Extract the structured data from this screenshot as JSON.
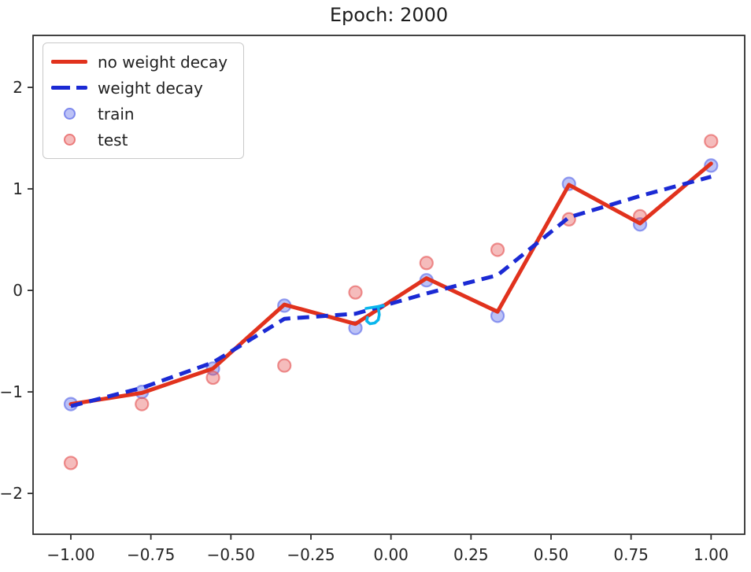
{
  "page": {
    "background": "#ffffff",
    "text_color": "#262626",
    "spine_color": "#2e2e2e"
  },
  "chart_data": {
    "type": "line+scatter",
    "title": "Epoch: 2000",
    "xlabel": "",
    "ylabel": "",
    "grid": false,
    "legend_position": "upper-left",
    "x": [
      -1.0,
      -0.778,
      -0.556,
      -0.333,
      -0.111,
      0.111,
      0.333,
      0.556,
      0.778,
      1.0
    ],
    "series": [
      {
        "name": "no weight decay",
        "kind": "line",
        "dash": "solid",
        "color": "#e1321d",
        "width": 5,
        "values": [
          -1.12,
          -1.01,
          -0.77,
          -0.14,
          -0.33,
          0.12,
          -0.21,
          1.04,
          0.66,
          1.25
        ]
      },
      {
        "name": "weight decay",
        "kind": "line",
        "dash": "dashed",
        "color": "#1b2ad4",
        "width": 5,
        "values": [
          -1.14,
          -0.96,
          -0.71,
          -0.28,
          -0.23,
          -0.03,
          0.15,
          0.72,
          0.93,
          1.12
        ]
      },
      {
        "name": "train",
        "kind": "scatter",
        "color": "rgba(88,103,232,0.40)",
        "edge": "rgba(88,103,232,0.62)",
        "radius": 8,
        "values": [
          -1.12,
          -1.0,
          -0.77,
          -0.15,
          -0.37,
          0.1,
          -0.25,
          1.05,
          0.65,
          1.23
        ]
      },
      {
        "name": "test",
        "kind": "scatter",
        "color": "rgba(229,80,80,0.38)",
        "edge": "rgba(229,80,80,0.60)",
        "radius": 8,
        "values": [
          -1.7,
          -1.12,
          -0.86,
          -0.74,
          -0.02,
          0.27,
          0.4,
          0.7,
          0.73,
          1.47
        ]
      }
    ],
    "xticks": {
      "values": [
        -1.0,
        -0.75,
        -0.5,
        -0.25,
        0.0,
        0.25,
        0.5,
        0.75,
        1.0
      ],
      "labels": [
        "−1.00",
        "−0.75",
        "−0.50",
        "−0.25",
        "0.00",
        "0.25",
        "0.50",
        "0.75",
        "1.00"
      ]
    },
    "yticks": {
      "values": [
        -2,
        -1,
        0,
        1,
        2
      ],
      "labels": [
        "−2",
        "−1",
        "0",
        "1",
        "2"
      ]
    },
    "xlim": [
      -1.118,
      1.105
    ],
    "ylim": [
      -2.402,
      2.512
    ],
    "annotation": {
      "label": "cyan-scribble",
      "color": "#0ab6ec",
      "stroke_width": 3.6,
      "strokes_px": [
        [
          [
            465,
            392
          ],
          [
            487,
            388.5
          ]
        ],
        [
          [
            480.5,
            390
          ],
          [
            481.8,
            400
          ],
          [
            480.5,
            406.5
          ],
          [
            476,
            410.5
          ],
          [
            470,
            411.5
          ],
          [
            465.8,
            408
          ],
          [
            466.8,
            403.5
          ]
        ]
      ]
    }
  }
}
